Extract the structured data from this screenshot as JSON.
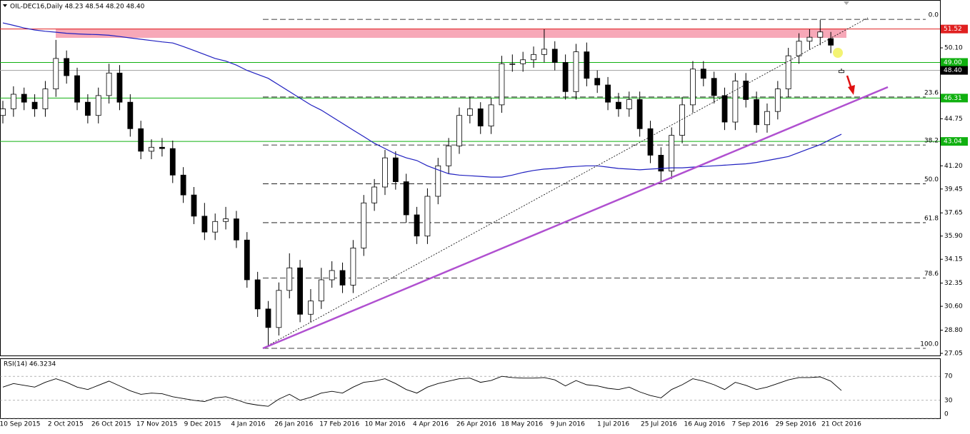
{
  "header": "OIL-DEC16,Daily  48.23 48.54 48.20 48.40",
  "chart_data": [
    {
      "type": "candlestick",
      "ylim": [
        26.89,
        53.71
      ],
      "yticks": [
        {
          "value": 50.1,
          "label": "50.10"
        },
        {
          "value": 44.75,
          "label": "44.75"
        },
        {
          "value": 41.2,
          "label": "41.20"
        },
        {
          "value": 39.45,
          "label": "39.45"
        },
        {
          "value": 37.65,
          "label": "37.65"
        },
        {
          "value": 35.9,
          "label": "35.90"
        },
        {
          "value": 34.15,
          "label": "34.15"
        },
        {
          "value": 32.35,
          "label": "32.35"
        },
        {
          "value": 30.6,
          "label": "30.60"
        },
        {
          "value": 28.8,
          "label": "28.80"
        },
        {
          "value": 27.05,
          "label": "27.05"
        }
      ],
      "xlabels": [
        "10 Sep 2015",
        "2 Oct 2015",
        "26 Oct 2015",
        "17 Nov 2015",
        "9 Dec 2015",
        "4 Jan 2016",
        "26 Jan 2016",
        "17 Feb 2016",
        "10 Mar 2016",
        "4 Apr 2016",
        "26 Apr 2016",
        "18 May 2016",
        "9 Jun 2016",
        "1 Jul 2016",
        "25 Jul 2016",
        "16 Aug 2016",
        "7 Sep 2016",
        "29 Sep 2016",
        "21 Oct 2016"
      ],
      "open": [
        45.0,
        45.5,
        46.6,
        46.0,
        45.5,
        47.0,
        49.3,
        48.0,
        46.0,
        45.0,
        46.5,
        48.2,
        46.0,
        44.0,
        42.3,
        42.6,
        42.5,
        40.5,
        39.0,
        37.4,
        36.2,
        37.0,
        37.2,
        35.6,
        32.6,
        30.4,
        29.0,
        31.8,
        33.5,
        30.0,
        31.0,
        32.6,
        33.3,
        32.2,
        35.0,
        38.4,
        39.6,
        41.8,
        40.0,
        37.5,
        35.9,
        38.9,
        41.2,
        42.7,
        45.0,
        45.5,
        44.2,
        45.8,
        48.9,
        48.9,
        49.2,
        49.6,
        50.0,
        49.0,
        46.8,
        49.8,
        47.8,
        47.3,
        46.0,
        45.5,
        46.2,
        44.0,
        42.0,
        40.8,
        43.5,
        45.8,
        48.5,
        47.8,
        46.5,
        44.5,
        47.6,
        46.2,
        44.3,
        45.3,
        47.0,
        49.5,
        50.6,
        50.9,
        50.8,
        48.23
      ],
      "high": [
        46.1,
        47.2,
        47.1,
        46.6,
        47.6,
        50.7,
        49.9,
        48.6,
        46.6,
        47.1,
        48.9,
        48.8,
        46.6,
        44.6,
        43.2,
        43.3,
        43.1,
        41.1,
        39.6,
        38.4,
        37.6,
        38.1,
        37.8,
        36.2,
        33.2,
        31.0,
        32.4,
        34.6,
        34.1,
        31.9,
        33.5,
        34.0,
        33.9,
        35.6,
        39.0,
        40.2,
        42.4,
        42.3,
        40.6,
        38.1,
        39.5,
        41.8,
        43.3,
        45.6,
        46.4,
        46.0,
        46.3,
        49.5,
        49.6,
        49.8,
        50.2,
        51.5,
        50.6,
        49.6,
        50.4,
        50.5,
        48.4,
        47.9,
        46.7,
        46.8,
        46.8,
        44.6,
        42.6,
        44.1,
        46.4,
        49.1,
        49.1,
        48.3,
        47.1,
        48.2,
        48.2,
        46.8,
        45.9,
        47.6,
        50.1,
        51.2,
        51.5,
        52.2,
        51.3,
        48.54
      ],
      "low": [
        44.4,
        44.9,
        45.4,
        44.9,
        44.9,
        46.4,
        47.4,
        45.4,
        44.4,
        44.4,
        45.9,
        45.4,
        43.4,
        41.7,
        41.7,
        41.9,
        39.9,
        38.4,
        36.8,
        35.6,
        35.6,
        36.4,
        35.0,
        32.0,
        29.8,
        27.6,
        28.4,
        31.2,
        29.4,
        29.4,
        30.4,
        32.0,
        31.6,
        31.6,
        34.4,
        37.8,
        39.0,
        39.4,
        36.9,
        35.3,
        35.3,
        38.3,
        40.6,
        42.1,
        44.4,
        43.6,
        43.6,
        45.2,
        48.3,
        48.3,
        48.6,
        49.0,
        48.4,
        46.2,
        46.2,
        47.2,
        46.7,
        45.4,
        44.9,
        44.9,
        43.4,
        41.4,
        39.9,
        40.2,
        42.9,
        45.2,
        47.2,
        45.9,
        43.9,
        43.9,
        45.6,
        43.7,
        43.7,
        44.7,
        46.4,
        48.9,
        50.0,
        50.3,
        49.7,
        48.2
      ],
      "close": [
        45.5,
        46.6,
        46.0,
        45.5,
        47.0,
        49.3,
        48.0,
        46.0,
        45.0,
        46.5,
        48.2,
        46.0,
        44.0,
        42.3,
        42.6,
        42.5,
        40.5,
        39.0,
        37.4,
        36.2,
        37.0,
        37.2,
        35.6,
        32.6,
        30.4,
        29.0,
        31.8,
        33.5,
        30.0,
        31.0,
        32.6,
        33.3,
        32.2,
        35.0,
        38.4,
        39.6,
        41.8,
        40.0,
        37.5,
        35.9,
        38.9,
        41.2,
        42.7,
        45.0,
        45.5,
        44.2,
        45.8,
        48.9,
        48.9,
        49.2,
        49.6,
        50.0,
        49.0,
        46.8,
        49.8,
        47.8,
        47.3,
        46.0,
        45.5,
        46.2,
        44.0,
        42.0,
        40.8,
        43.5,
        45.8,
        48.5,
        47.8,
        46.5,
        44.5,
        47.6,
        46.2,
        44.3,
        45.3,
        47.0,
        49.5,
        50.6,
        50.9,
        51.3,
        50.3,
        48.4
      ],
      "ma": {
        "color": "#2020c0",
        "values": [
          51.98,
          51.8,
          51.6,
          51.45,
          51.35,
          51.28,
          51.2,
          51.15,
          51.12,
          51.1,
          51.05,
          50.95,
          50.85,
          50.75,
          50.65,
          50.55,
          50.47,
          50.2,
          49.9,
          49.6,
          49.3,
          49.1,
          48.8,
          48.4,
          48.1,
          47.8,
          47.3,
          46.8,
          46.3,
          45.8,
          45.4,
          44.9,
          44.4,
          43.9,
          43.4,
          42.9,
          42.5,
          42.1,
          41.8,
          41.6,
          41.2,
          40.9,
          40.6,
          40.5,
          40.45,
          40.4,
          40.35,
          40.35,
          40.5,
          40.7,
          40.85,
          40.95,
          41.0,
          41.1,
          41.15,
          41.2,
          41.2,
          41.1,
          41.0,
          40.95,
          40.9,
          40.95,
          41.0,
          41.05,
          41.05,
          41.1,
          41.15,
          41.2,
          41.25,
          41.3,
          41.35,
          41.45,
          41.6,
          41.75,
          41.9,
          42.2,
          42.5,
          42.8,
          43.2,
          43.58
        ]
      },
      "levels": [
        {
          "value": 51.52,
          "label": "51.52",
          "color": "#e02020",
          "box": "#e02020"
        },
        {
          "value": 49,
          "label": "49.00",
          "color": "#10b010",
          "box": "#10b010"
        },
        {
          "value": 48.4,
          "label": "48.40",
          "color": "#a0a0a0",
          "box": "#000000"
        },
        {
          "value": 46.31,
          "label": "46.31",
          "color": "#10b010",
          "box": "#10b010"
        },
        {
          "value": 43.04,
          "label": "43.04",
          "color": "#10b010",
          "box": "#10b010"
        }
      ],
      "fib": [
        {
          "value": 52.25,
          "label": "0.0"
        },
        {
          "value": 46.39,
          "label": "23.6"
        },
        {
          "value": 42.77,
          "label": "38.2"
        },
        {
          "value": 39.84,
          "label": "50.0"
        },
        {
          "value": 36.91,
          "label": "61.8"
        },
        {
          "value": 32.74,
          "label": "78.6"
        },
        {
          "value": 27.43,
          "label": "100.0"
        }
      ]
    },
    {
      "type": "line",
      "title": "RSI(14) 46.3234",
      "color": "#000000",
      "ylim": [
        0,
        100
      ],
      "yticks": [
        70,
        30,
        0
      ],
      "values": [
        52,
        58,
        55,
        52,
        60,
        66,
        60,
        52,
        48,
        55,
        62,
        54,
        46,
        40,
        42,
        41,
        36,
        33,
        30,
        28,
        34,
        36,
        31,
        25,
        22,
        20,
        32,
        40,
        30,
        35,
        42,
        45,
        42,
        52,
        60,
        62,
        66,
        58,
        48,
        42,
        52,
        58,
        62,
        66,
        67,
        60,
        63,
        70,
        68,
        67,
        67,
        68,
        64,
        54,
        63,
        56,
        54,
        50,
        48,
        52,
        44,
        38,
        34,
        48,
        56,
        66,
        62,
        56,
        48,
        60,
        55,
        48,
        52,
        58,
        64,
        68,
        68,
        69,
        62,
        46.3234
      ]
    }
  ]
}
